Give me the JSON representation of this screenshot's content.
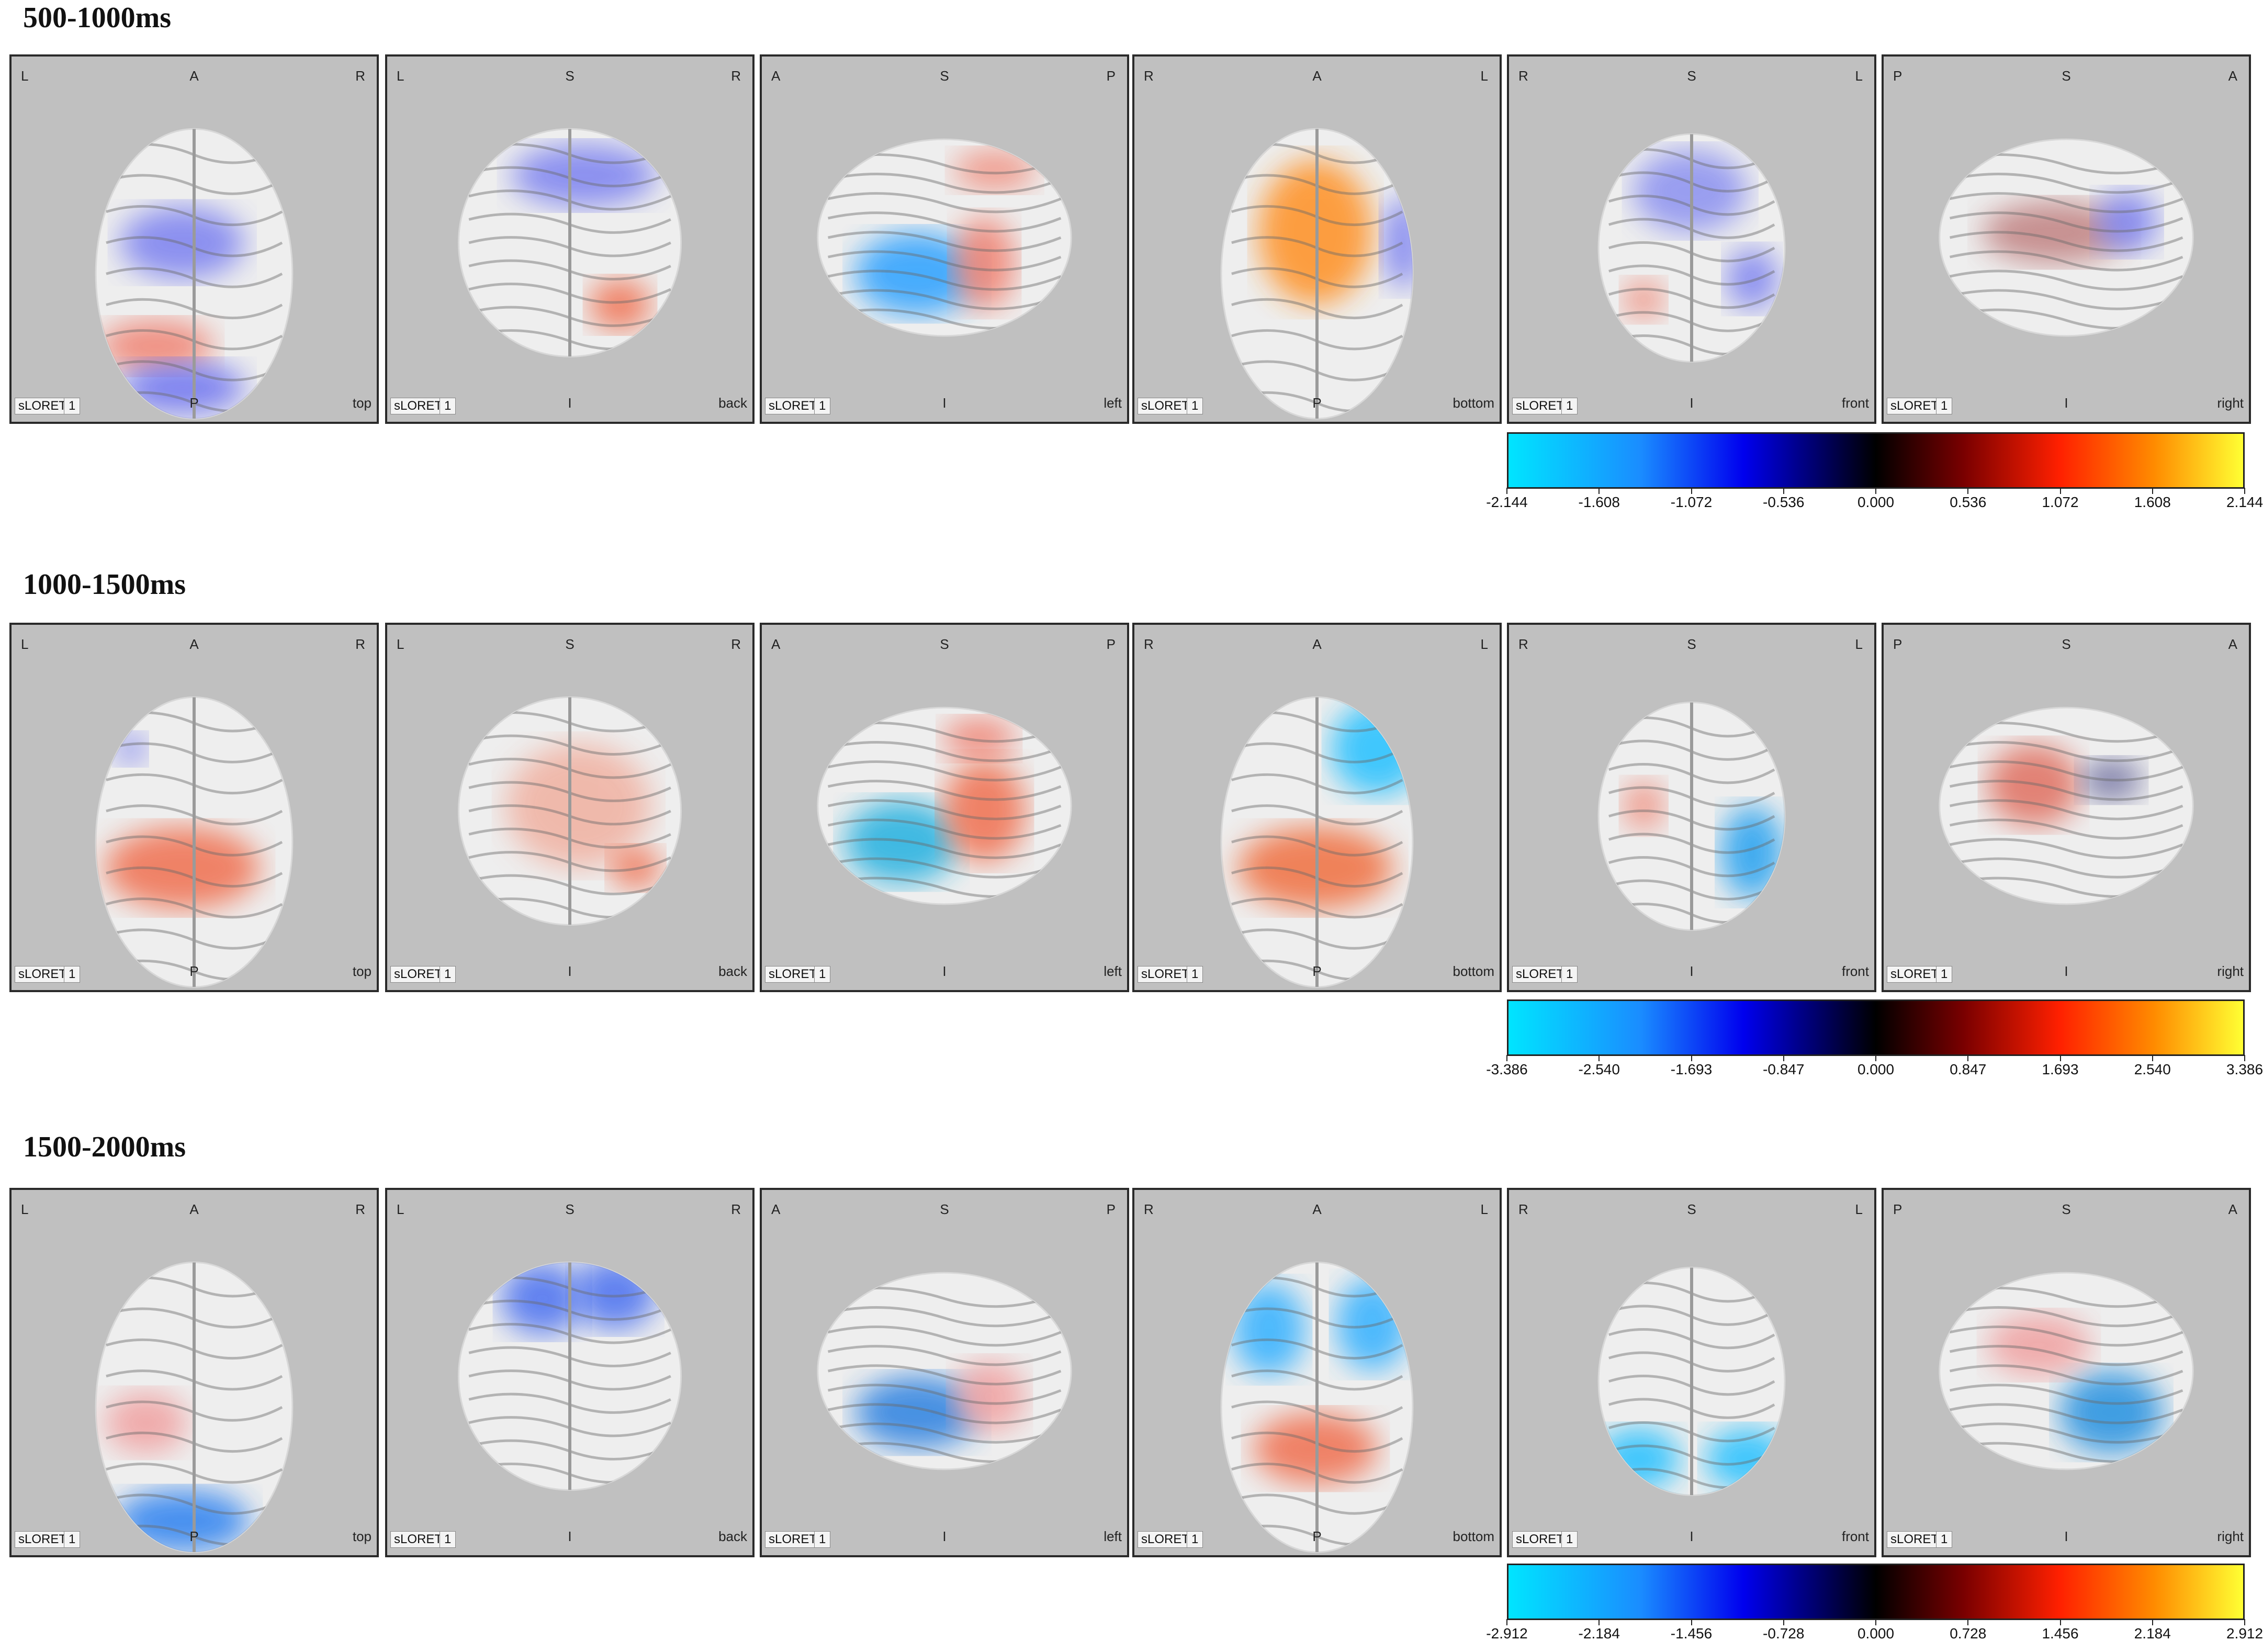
{
  "rows": [
    {
      "title": "500-1000ms",
      "ticks": [
        "-2.144",
        "-1.608",
        "-1.072",
        "-0.536",
        "0.000",
        "0.536",
        "1.072",
        "1.608",
        "2.144"
      ]
    },
    {
      "title": "1000-1500ms",
      "ticks": [
        "-3.386",
        "-2.540",
        "-1.693",
        "-0.847",
        "0.000",
        "0.847",
        "1.693",
        "2.540",
        "3.386"
      ]
    },
    {
      "title": "1500-2000ms",
      "ticks": [
        "-2.912",
        "-2.184",
        "-1.456",
        "-0.728",
        "0.000",
        "0.728",
        "1.456",
        "2.184",
        "2.912"
      ]
    }
  ],
  "views": [
    {
      "tl": "L",
      "tm": "A",
      "tr": "R",
      "bm": "P",
      "br": "top"
    },
    {
      "tl": "L",
      "tm": "S",
      "tr": "R",
      "bm": "I",
      "br": "back"
    },
    {
      "tl": "A",
      "tm": "S",
      "tr": "P",
      "bm": "I",
      "br": "left"
    },
    {
      "tl": "R",
      "tm": "A",
      "tr": "L",
      "bm": "P",
      "br": "bottom"
    },
    {
      "tl": "R",
      "tm": "S",
      "tr": "L",
      "bm": "I",
      "br": "front"
    },
    {
      "tl": "P",
      "tm": "S",
      "tr": "A",
      "bm": "I",
      "br": "right"
    }
  ],
  "method_label": "sLORETA",
  "frame_label": "1",
  "colors": {
    "negative_max": "#00e5ff",
    "negative_mid": "#0000ee",
    "zero": "#000000",
    "positive_mid": "#ff2000",
    "positive_max": "#ffff33",
    "panel_background": "#c0c0c0"
  }
}
